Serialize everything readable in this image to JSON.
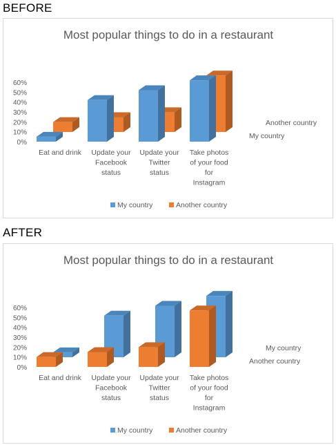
{
  "headings": {
    "before": "BEFORE",
    "after": "AFTER"
  },
  "chart_data": [
    {
      "panel": "BEFORE",
      "type": "bar",
      "style": "3d-clustered",
      "title": "Most popular things to do in a restaurant",
      "categories": [
        [
          "Eat and drink"
        ],
        [
          "Update your",
          "Facebook",
          "status"
        ],
        [
          "Update your",
          "Twitter",
          "status"
        ],
        [
          "Take photos",
          "of your food",
          "for",
          "Instagram"
        ]
      ],
      "ylim": [
        0,
        60
      ],
      "y_ticks": [
        "0%",
        "10%",
        "20%",
        "30%",
        "40%",
        "50%",
        "60%"
      ],
      "series": [
        {
          "name": "My country",
          "color": "#5b9bd5",
          "side": "#41719c",
          "top": "#4a85bb",
          "values": [
            5,
            42,
            52,
            62
          ],
          "depth_row": "front"
        },
        {
          "name": "Another country",
          "color": "#ed7d31",
          "side": "#ae5a21",
          "top": "#c9692a",
          "values": [
            10,
            15,
            20,
            57
          ],
          "depth_row": "back"
        }
      ],
      "depth_labels": [
        "Another country",
        "My country"
      ],
      "legend": "bottom"
    },
    {
      "panel": "AFTER",
      "type": "bar",
      "style": "3d-clustered",
      "title": "Most popular things to do in a restaurant",
      "categories": [
        [
          "Eat and drink"
        ],
        [
          "Update your",
          "Facebook",
          "status"
        ],
        [
          "Update your",
          "Twitter",
          "status"
        ],
        [
          "Take photos",
          "of your food",
          "for",
          "Instagram"
        ]
      ],
      "ylim": [
        0,
        60
      ],
      "y_ticks": [
        "0%",
        "10%",
        "20%",
        "30%",
        "40%",
        "50%",
        "60%"
      ],
      "series": [
        {
          "name": "My country",
          "color": "#5b9bd5",
          "side": "#41719c",
          "top": "#4a85bb",
          "values": [
            5,
            42,
            52,
            62
          ],
          "depth_row": "back"
        },
        {
          "name": "Another country",
          "color": "#ed7d31",
          "side": "#ae5a21",
          "top": "#c9692a",
          "values": [
            10,
            15,
            20,
            57
          ],
          "depth_row": "front"
        }
      ],
      "depth_labels": [
        "My country",
        "Another country"
      ],
      "legend": "bottom"
    }
  ]
}
